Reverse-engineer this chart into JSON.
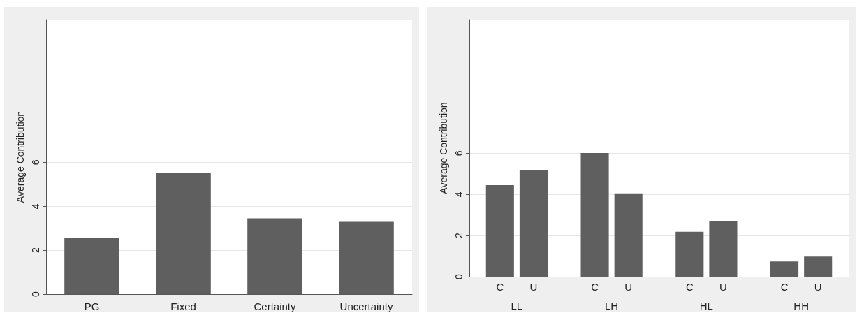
{
  "chart_data": [
    {
      "type": "bar",
      "ylabel": "Average Contribution",
      "categories": [
        "PG",
        "Fixed",
        "Certainty",
        "Uncertainty"
      ],
      "values": [
        2.57,
        5.5,
        3.45,
        3.29
      ],
      "color": "#5f5f5f",
      "ylim": [
        0,
        12.5
      ],
      "yticks": [
        0,
        2,
        4,
        6
      ],
      "grid": "y"
    },
    {
      "type": "bar",
      "ylabel": "Average Contribution",
      "categories": [
        "LL",
        "LH",
        "HL",
        "HH"
      ],
      "series": [
        {
          "name": "C",
          "color": "#5f5f5f",
          "values": [
            4.45,
            6.01,
            2.18,
            0.74
          ]
        },
        {
          "name": "U",
          "color": "#5f5f5f",
          "values": [
            5.19,
            4.05,
            2.72,
            0.98
          ]
        }
      ],
      "ylim": [
        0,
        12.5
      ],
      "yticks": [
        0,
        2,
        4,
        6
      ],
      "grid": "y"
    }
  ]
}
